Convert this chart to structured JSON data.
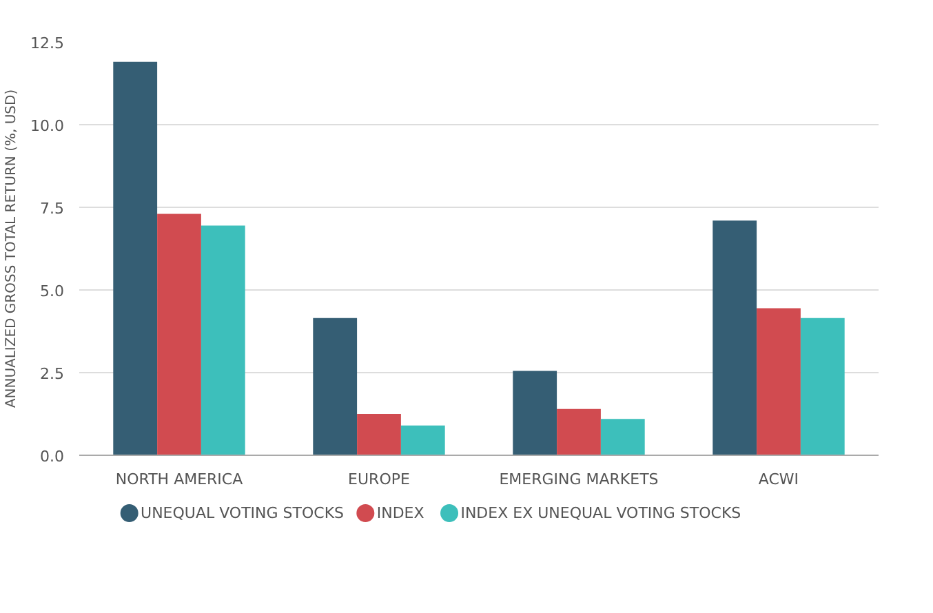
{
  "chart_data": {
    "type": "bar",
    "ylabel": "ANNUALIZED GROSS TOTAL RETURN (%, USD)",
    "categories": [
      "NORTH AMERICA",
      "EUROPE",
      "EMERGING MARKETS",
      "ACWI"
    ],
    "series": [
      {
        "name": "UNEQUAL VOTING STOCKS",
        "color": "#355e74",
        "values": [
          11.9,
          4.15,
          2.55,
          7.1
        ]
      },
      {
        "name": "INDEX",
        "color": "#d14b50",
        "values": [
          7.3,
          1.25,
          1.4,
          4.45
        ]
      },
      {
        "name": "INDEX EX UNEQUAL VOTING STOCKS",
        "color": "#3dbfbb",
        "values": [
          6.95,
          0.9,
          1.1,
          4.15
        ]
      }
    ],
    "ylim": [
      0,
      12.5
    ],
    "yticks": [
      {
        "value": 0,
        "label": "0.0"
      },
      {
        "value": 2.5,
        "label": "2.5"
      },
      {
        "value": 5,
        "label": "5.0"
      },
      {
        "value": 7.5,
        "label": "7.5"
      },
      {
        "value": 10,
        "label": "10.0"
      },
      {
        "value": 12.5,
        "label": "12.5"
      }
    ],
    "grid": "y",
    "legend": "bottom"
  }
}
